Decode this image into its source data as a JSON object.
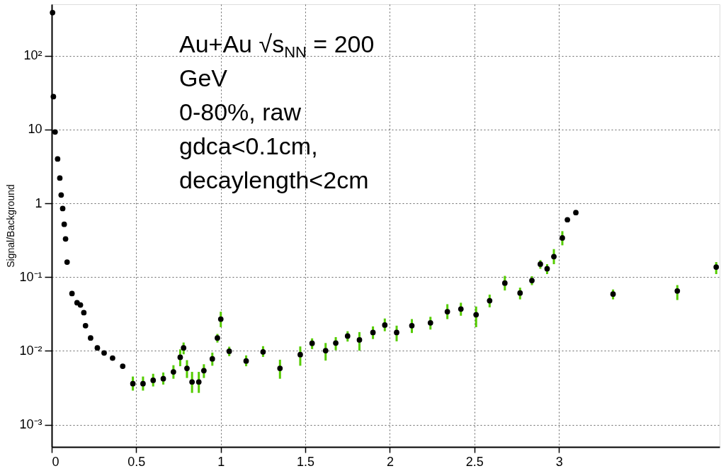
{
  "chart_data": {
    "type": "scatter",
    "ylabel": "Signal/Background",
    "annotations": [
      "Au+Au √s$_{NN}$ = 200",
      "GeV",
      "0-80%, raw",
      "gdca<0.1cm,",
      "decaylength<2cm"
    ],
    "log": "y",
    "grid": true,
    "marker": "circle",
    "xlim": [
      0,
      3.95
    ],
    "xticks": [
      0,
      0.5,
      1,
      1.5,
      2,
      2.5,
      3
    ],
    "ylim": [
      0.0005,
      500
    ],
    "yticks": [
      {
        "value": 0.001,
        "label": "10⁻³"
      },
      {
        "value": 0.01,
        "label": "10⁻²"
      },
      {
        "value": 0.1,
        "label": "10⁻¹"
      },
      1,
      10,
      {
        "value": 100,
        "label": "10²"
      }
    ],
    "series": [
      {
        "color": "#000000",
        "x": [
          0.005,
          0.01,
          0.02,
          0.035,
          0.048,
          0.056,
          0.065,
          0.074,
          0.082,
          0.091,
          0.12,
          0.15,
          0.17,
          0.19,
          0.2,
          0.23,
          0.27,
          0.31,
          0.36,
          0.42,
          0.48,
          0.54,
          0.6,
          0.66,
          0.72,
          0.76,
          0.78,
          0.8,
          0.83,
          0.87,
          0.9,
          0.95,
          0.98,
          1.0,
          1.05,
          1.15,
          1.25,
          1.35,
          1.47,
          1.54,
          1.62,
          1.68,
          1.75,
          1.82,
          1.9,
          1.97,
          2.04,
          2.13,
          2.24,
          2.34,
          2.42,
          2.51,
          2.59,
          2.68,
          2.77,
          2.84,
          2.89,
          2.93,
          2.97,
          3.02,
          3.05,
          3.1,
          3.32,
          3.7,
          3.93
        ],
        "values": [
          385,
          28,
          9.3,
          4.0,
          2.2,
          1.3,
          0.85,
          0.52,
          0.33,
          0.16,
          0.06,
          0.045,
          0.042,
          0.033,
          0.022,
          0.015,
          0.011,
          0.0094,
          0.008,
          0.0062,
          0.0036,
          0.0036,
          0.004,
          0.0042,
          0.0052,
          0.0082,
          0.011,
          0.0058,
          0.0038,
          0.0038,
          0.0054,
          0.0078,
          0.015,
          0.027,
          0.0099,
          0.0073,
          0.0097,
          0.0058,
          0.0089,
          0.0127,
          0.0101,
          0.0128,
          0.0159,
          0.0141,
          0.0178,
          0.0224,
          0.0178,
          0.022,
          0.024,
          0.034,
          0.037,
          0.031,
          0.048,
          0.083,
          0.061,
          0.09,
          0.15,
          0.13,
          0.19,
          0.34,
          0.6,
          0.75,
          0.059,
          0.065,
          0.137
        ],
        "errors": [
          null,
          null,
          null,
          null,
          null,
          null,
          null,
          null,
          null,
          null,
          null,
          null,
          null,
          null,
          null,
          null,
          null,
          null,
          null,
          null,
          [
            0.0029,
            0.0045
          ],
          [
            0.0029,
            0.0045
          ],
          [
            0.0033,
            0.0049
          ],
          [
            0.0035,
            0.0051
          ],
          [
            0.0042,
            0.0064
          ],
          [
            0.0062,
            0.0105
          ],
          [
            0.009,
            0.013
          ],
          [
            0.0043,
            0.0075
          ],
          [
            0.0027,
            0.0052
          ],
          [
            0.0027,
            0.0052
          ],
          [
            0.0043,
            0.0066
          ],
          [
            0.0063,
            0.0095
          ],
          [
            0.013,
            0.017
          ],
          [
            0.021,
            0.034
          ],
          [
            0.0085,
            0.0114
          ],
          [
            0.0062,
            0.0087
          ],
          [
            0.0083,
            0.0116
          ],
          [
            0.0042,
            0.0076
          ],
          [
            0.0063,
            0.0115
          ],
          [
            0.0106,
            0.0148
          ],
          [
            0.0074,
            0.0128
          ],
          [
            0.0102,
            0.0154
          ],
          [
            0.0134,
            0.0185
          ],
          [
            0.0101,
            0.018
          ],
          [
            0.0145,
            0.0215
          ],
          [
            0.0185,
            0.0275
          ],
          [
            0.0135,
            0.022
          ],
          [
            0.0175,
            0.027
          ],
          [
            0.0195,
            0.029
          ],
          [
            0.027,
            0.043
          ],
          [
            0.03,
            0.045
          ],
          [
            0.021,
            0.04
          ],
          [
            0.039,
            0.058
          ],
          [
            0.066,
            0.104
          ],
          [
            0.05,
            0.072
          ],
          [
            0.078,
            0.103
          ],
          [
            0.13,
            0.17
          ],
          [
            0.11,
            0.15
          ],
          [
            0.15,
            0.24
          ],
          [
            0.27,
            0.42
          ],
          [
            0.57,
            0.63
          ],
          [
            0.72,
            0.78
          ],
          [
            0.05,
            0.068
          ],
          [
            0.049,
            0.078
          ],
          [
            0.11,
            0.16
          ]
        ]
      }
    ]
  }
}
